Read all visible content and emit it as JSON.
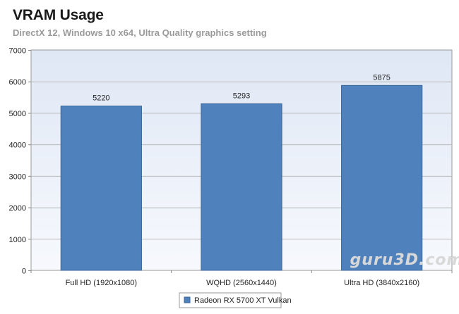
{
  "chart_data": {
    "type": "bar",
    "title": "VRAM Usage",
    "subtitle": "DirectX 12, Windows 10 x64, Ultra Quality graphics setting",
    "categories": [
      "Full HD (1920x1080)",
      "WQHD (2560x1440)",
      "Ultra HD (3840x2160)"
    ],
    "series": [
      {
        "name": "Radeon RX 5700 XT Vulkan",
        "values": [
          5220,
          5293,
          5875
        ]
      }
    ],
    "ylim": [
      0,
      7000
    ],
    "yticks": [
      0,
      1000,
      2000,
      3000,
      4000,
      5000,
      6000,
      7000
    ],
    "grid": true,
    "legend": "bottom-center",
    "colors": {
      "bar": "#4f81bd",
      "bar_edge": "#3a6699",
      "plot_bg": "#e8eef8"
    },
    "watermark": "guru3D.com"
  }
}
